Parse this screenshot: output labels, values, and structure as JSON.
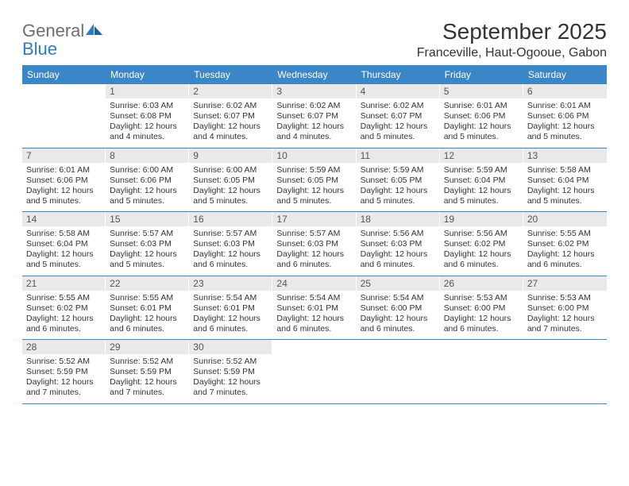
{
  "logo": {
    "word1": "General",
    "word2": "Blue"
  },
  "title": "September 2025",
  "location": "Franceville, Haut-Ogooue, Gabon",
  "day_headers": [
    "Sunday",
    "Monday",
    "Tuesday",
    "Wednesday",
    "Thursday",
    "Friday",
    "Saturday"
  ],
  "colors": {
    "header_bg": "#3b86c6",
    "header_text": "#ffffff",
    "daynum_bg": "#e9e9e9",
    "week_border": "#3b86c6",
    "logo_gray": "#6d6e71",
    "logo_blue": "#2e7cc0"
  },
  "weeks": [
    [
      null,
      {
        "n": "1",
        "sr": "Sunrise: 6:03 AM",
        "ss": "Sunset: 6:08 PM",
        "d1": "Daylight: 12 hours",
        "d2": "and 4 minutes."
      },
      {
        "n": "2",
        "sr": "Sunrise: 6:02 AM",
        "ss": "Sunset: 6:07 PM",
        "d1": "Daylight: 12 hours",
        "d2": "and 4 minutes."
      },
      {
        "n": "3",
        "sr": "Sunrise: 6:02 AM",
        "ss": "Sunset: 6:07 PM",
        "d1": "Daylight: 12 hours",
        "d2": "and 4 minutes."
      },
      {
        "n": "4",
        "sr": "Sunrise: 6:02 AM",
        "ss": "Sunset: 6:07 PM",
        "d1": "Daylight: 12 hours",
        "d2": "and 5 minutes."
      },
      {
        "n": "5",
        "sr": "Sunrise: 6:01 AM",
        "ss": "Sunset: 6:06 PM",
        "d1": "Daylight: 12 hours",
        "d2": "and 5 minutes."
      },
      {
        "n": "6",
        "sr": "Sunrise: 6:01 AM",
        "ss": "Sunset: 6:06 PM",
        "d1": "Daylight: 12 hours",
        "d2": "and 5 minutes."
      }
    ],
    [
      {
        "n": "7",
        "sr": "Sunrise: 6:01 AM",
        "ss": "Sunset: 6:06 PM",
        "d1": "Daylight: 12 hours",
        "d2": "and 5 minutes."
      },
      {
        "n": "8",
        "sr": "Sunrise: 6:00 AM",
        "ss": "Sunset: 6:06 PM",
        "d1": "Daylight: 12 hours",
        "d2": "and 5 minutes."
      },
      {
        "n": "9",
        "sr": "Sunrise: 6:00 AM",
        "ss": "Sunset: 6:05 PM",
        "d1": "Daylight: 12 hours",
        "d2": "and 5 minutes."
      },
      {
        "n": "10",
        "sr": "Sunrise: 5:59 AM",
        "ss": "Sunset: 6:05 PM",
        "d1": "Daylight: 12 hours",
        "d2": "and 5 minutes."
      },
      {
        "n": "11",
        "sr": "Sunrise: 5:59 AM",
        "ss": "Sunset: 6:05 PM",
        "d1": "Daylight: 12 hours",
        "d2": "and 5 minutes."
      },
      {
        "n": "12",
        "sr": "Sunrise: 5:59 AM",
        "ss": "Sunset: 6:04 PM",
        "d1": "Daylight: 12 hours",
        "d2": "and 5 minutes."
      },
      {
        "n": "13",
        "sr": "Sunrise: 5:58 AM",
        "ss": "Sunset: 6:04 PM",
        "d1": "Daylight: 12 hours",
        "d2": "and 5 minutes."
      }
    ],
    [
      {
        "n": "14",
        "sr": "Sunrise: 5:58 AM",
        "ss": "Sunset: 6:04 PM",
        "d1": "Daylight: 12 hours",
        "d2": "and 5 minutes."
      },
      {
        "n": "15",
        "sr": "Sunrise: 5:57 AM",
        "ss": "Sunset: 6:03 PM",
        "d1": "Daylight: 12 hours",
        "d2": "and 5 minutes."
      },
      {
        "n": "16",
        "sr": "Sunrise: 5:57 AM",
        "ss": "Sunset: 6:03 PM",
        "d1": "Daylight: 12 hours",
        "d2": "and 6 minutes."
      },
      {
        "n": "17",
        "sr": "Sunrise: 5:57 AM",
        "ss": "Sunset: 6:03 PM",
        "d1": "Daylight: 12 hours",
        "d2": "and 6 minutes."
      },
      {
        "n": "18",
        "sr": "Sunrise: 5:56 AM",
        "ss": "Sunset: 6:03 PM",
        "d1": "Daylight: 12 hours",
        "d2": "and 6 minutes."
      },
      {
        "n": "19",
        "sr": "Sunrise: 5:56 AM",
        "ss": "Sunset: 6:02 PM",
        "d1": "Daylight: 12 hours",
        "d2": "and 6 minutes."
      },
      {
        "n": "20",
        "sr": "Sunrise: 5:55 AM",
        "ss": "Sunset: 6:02 PM",
        "d1": "Daylight: 12 hours",
        "d2": "and 6 minutes."
      }
    ],
    [
      {
        "n": "21",
        "sr": "Sunrise: 5:55 AM",
        "ss": "Sunset: 6:02 PM",
        "d1": "Daylight: 12 hours",
        "d2": "and 6 minutes."
      },
      {
        "n": "22",
        "sr": "Sunrise: 5:55 AM",
        "ss": "Sunset: 6:01 PM",
        "d1": "Daylight: 12 hours",
        "d2": "and 6 minutes."
      },
      {
        "n": "23",
        "sr": "Sunrise: 5:54 AM",
        "ss": "Sunset: 6:01 PM",
        "d1": "Daylight: 12 hours",
        "d2": "and 6 minutes."
      },
      {
        "n": "24",
        "sr": "Sunrise: 5:54 AM",
        "ss": "Sunset: 6:01 PM",
        "d1": "Daylight: 12 hours",
        "d2": "and 6 minutes."
      },
      {
        "n": "25",
        "sr": "Sunrise: 5:54 AM",
        "ss": "Sunset: 6:00 PM",
        "d1": "Daylight: 12 hours",
        "d2": "and 6 minutes."
      },
      {
        "n": "26",
        "sr": "Sunrise: 5:53 AM",
        "ss": "Sunset: 6:00 PM",
        "d1": "Daylight: 12 hours",
        "d2": "and 6 minutes."
      },
      {
        "n": "27",
        "sr": "Sunrise: 5:53 AM",
        "ss": "Sunset: 6:00 PM",
        "d1": "Daylight: 12 hours",
        "d2": "and 7 minutes."
      }
    ],
    [
      {
        "n": "28",
        "sr": "Sunrise: 5:52 AM",
        "ss": "Sunset: 5:59 PM",
        "d1": "Daylight: 12 hours",
        "d2": "and 7 minutes."
      },
      {
        "n": "29",
        "sr": "Sunrise: 5:52 AM",
        "ss": "Sunset: 5:59 PM",
        "d1": "Daylight: 12 hours",
        "d2": "and 7 minutes."
      },
      {
        "n": "30",
        "sr": "Sunrise: 5:52 AM",
        "ss": "Sunset: 5:59 PM",
        "d1": "Daylight: 12 hours",
        "d2": "and 7 minutes."
      },
      null,
      null,
      null,
      null
    ]
  ]
}
